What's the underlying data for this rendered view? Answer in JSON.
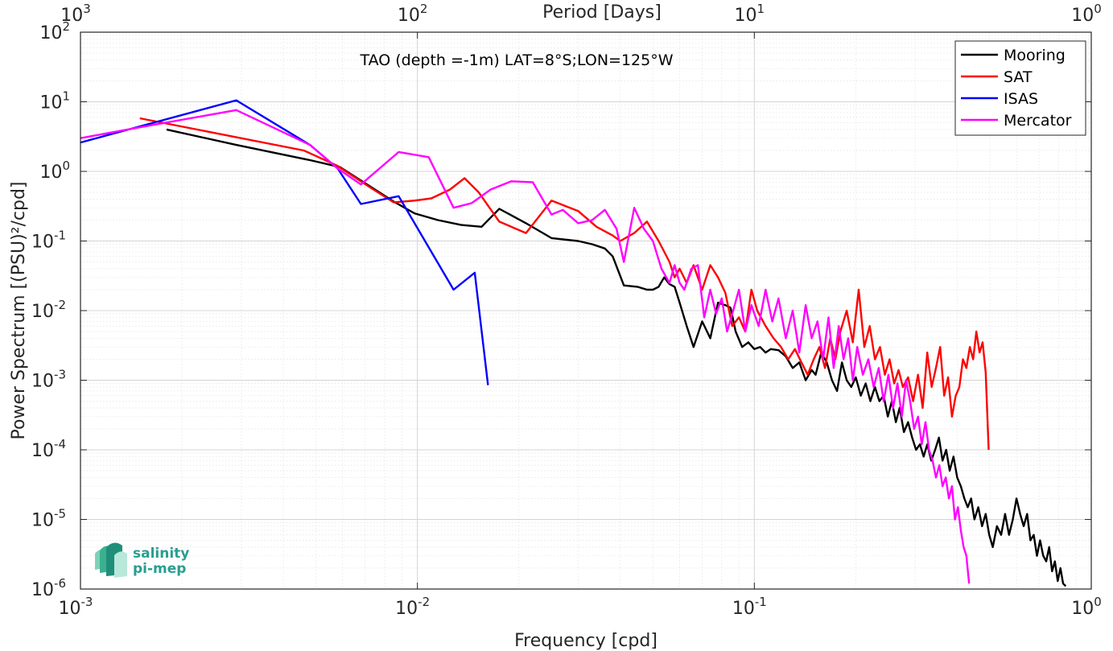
{
  "chart_data": {
    "type": "line",
    "title": "",
    "annotation": "TAO (depth =-1m) LAT=8°S;LON=125°W",
    "xlabel": "Frequency [cpd]",
    "ylabel": "Power Spectrum [(PSU)²/cpd]",
    "top_xlabel": "Period [Days]",
    "xscale": "log",
    "yscale": "log",
    "xlim": [
      0.001,
      1
    ],
    "ylim": [
      1e-06,
      100
    ],
    "grid": true,
    "legend_position": "top-right",
    "x_ticks": [
      {
        "base": "10",
        "exp": "-3",
        "value": 0.001
      },
      {
        "base": "10",
        "exp": "-2",
        "value": 0.01
      },
      {
        "base": "10",
        "exp": "-1",
        "value": 0.1
      },
      {
        "base": "10",
        "exp": "0",
        "value": 1
      }
    ],
    "y_ticks": [
      {
        "base": "10",
        "exp": "2",
        "value": 100
      },
      {
        "base": "10",
        "exp": "1",
        "value": 10
      },
      {
        "base": "10",
        "exp": "0",
        "value": 1
      },
      {
        "base": "10",
        "exp": "-1",
        "value": 0.1
      },
      {
        "base": "10",
        "exp": "-2",
        "value": 0.01
      },
      {
        "base": "10",
        "exp": "-3",
        "value": 0.001
      },
      {
        "base": "10",
        "exp": "-4",
        "value": 0.0001
      },
      {
        "base": "10",
        "exp": "-5",
        "value": 1e-05
      },
      {
        "base": "10",
        "exp": "-6",
        "value": 1e-06
      }
    ],
    "top_ticks": [
      {
        "base": "10",
        "exp": "3",
        "value": 0.001
      },
      {
        "base": "10",
        "exp": "2",
        "value": 0.01
      },
      {
        "base": "10",
        "exp": "1",
        "value": 0.1
      },
      {
        "base": "10",
        "exp": "0",
        "value": 1
      }
    ],
    "series": [
      {
        "name": "Mooring",
        "color": "#000000",
        "x": [
          0.0018,
          0.0029,
          0.0048,
          0.0059,
          0.0072,
          0.0085,
          0.0098,
          0.0115,
          0.0135,
          0.0155,
          0.0175,
          0.021,
          0.025,
          0.03,
          0.033,
          0.036,
          0.038,
          0.041,
          0.045,
          0.048,
          0.05,
          0.052,
          0.054,
          0.056,
          0.058,
          0.06,
          0.063,
          0.066,
          0.07,
          0.074,
          0.078,
          0.082,
          0.085,
          0.088,
          0.092,
          0.096,
          0.1,
          0.104,
          0.108,
          0.112,
          0.118,
          0.124,
          0.13,
          0.136,
          0.142,
          0.148,
          0.152,
          0.158,
          0.164,
          0.17,
          0.176,
          0.182,
          0.188,
          0.194,
          0.2,
          0.207,
          0.214,
          0.221,
          0.228,
          0.235,
          0.242,
          0.249,
          0.256,
          0.263,
          0.27,
          0.278,
          0.286,
          0.294,
          0.302,
          0.31,
          0.318,
          0.326,
          0.335,
          0.344,
          0.353,
          0.362,
          0.371,
          0.38,
          0.39,
          0.4,
          0.41,
          0.42,
          0.43,
          0.44,
          0.45,
          0.462,
          0.474,
          0.486,
          0.498,
          0.51,
          0.525,
          0.54,
          0.555,
          0.57,
          0.585,
          0.6,
          0.615,
          0.63,
          0.645,
          0.66,
          0.675,
          0.69,
          0.705,
          0.72,
          0.735,
          0.75,
          0.765,
          0.78,
          0.795,
          0.81,
          0.825,
          0.84
        ],
        "y": [
          4.0,
          2.4,
          1.45,
          1.15,
          0.62,
          0.37,
          0.25,
          0.2,
          0.17,
          0.16,
          0.29,
          0.18,
          0.11,
          0.1,
          0.09,
          0.078,
          0.06,
          0.023,
          0.022,
          0.02,
          0.02,
          0.022,
          0.03,
          0.024,
          0.022,
          0.013,
          0.006,
          0.003,
          0.007,
          0.004,
          0.013,
          0.012,
          0.011,
          0.005,
          0.003,
          0.0035,
          0.0028,
          0.003,
          0.0025,
          0.0028,
          0.0027,
          0.0022,
          0.0015,
          0.0018,
          0.001,
          0.0014,
          0.0012,
          0.0025,
          0.0018,
          0.001,
          0.0007,
          0.0018,
          0.001,
          0.0008,
          0.0011,
          0.0006,
          0.0009,
          0.0005,
          0.0008,
          0.0005,
          0.0006,
          0.0003,
          0.0005,
          0.00025,
          0.0004,
          0.00018,
          0.00025,
          0.00015,
          0.0001,
          0.00012,
          8e-05,
          0.00012,
          7e-05,
          0.0001,
          0.00015,
          7e-05,
          0.0001,
          5e-05,
          8e-05,
          4e-05,
          3e-05,
          2e-05,
          1.5e-05,
          2e-05,
          1e-05,
          1.5e-05,
          8e-06,
          1.2e-05,
          6e-06,
          4e-06,
          8e-06,
          6e-06,
          1.2e-05,
          6e-06,
          1e-05,
          2e-05,
          1.2e-05,
          8e-06,
          1.2e-05,
          5e-06,
          6e-06,
          3e-06,
          5e-06,
          3e-06,
          2.5e-06,
          4e-06,
          1.8e-06,
          2.5e-06,
          1.3e-06,
          2e-06,
          1.2e-06,
          1.1e-06
        ]
      },
      {
        "name": "SAT",
        "color": "#ff0000",
        "x": [
          0.0015,
          0.0046,
          0.0058,
          0.0072,
          0.0085,
          0.0098,
          0.011,
          0.0125,
          0.0138,
          0.0152,
          0.0175,
          0.021,
          0.025,
          0.03,
          0.034,
          0.038,
          0.04,
          0.044,
          0.048,
          0.052,
          0.056,
          0.058,
          0.06,
          0.063,
          0.066,
          0.07,
          0.074,
          0.078,
          0.082,
          0.086,
          0.09,
          0.094,
          0.098,
          0.102,
          0.108,
          0.114,
          0.12,
          0.126,
          0.132,
          0.138,
          0.144,
          0.15,
          0.156,
          0.162,
          0.168,
          0.174,
          0.18,
          0.188,
          0.196,
          0.204,
          0.212,
          0.22,
          0.228,
          0.236,
          0.244,
          0.252,
          0.26,
          0.268,
          0.276,
          0.286,
          0.296,
          0.306,
          0.316,
          0.326,
          0.336,
          0.346,
          0.356,
          0.366,
          0.376,
          0.386,
          0.396,
          0.406,
          0.416,
          0.426,
          0.436,
          0.446,
          0.456,
          0.466,
          0.476,
          0.486,
          0.496
        ],
        "y": [
          5.8,
          2.0,
          1.2,
          0.6,
          0.36,
          0.38,
          0.41,
          0.55,
          0.8,
          0.5,
          0.19,
          0.13,
          0.38,
          0.27,
          0.16,
          0.12,
          0.1,
          0.13,
          0.19,
          0.1,
          0.05,
          0.03,
          0.04,
          0.025,
          0.045,
          0.02,
          0.045,
          0.03,
          0.018,
          0.006,
          0.008,
          0.005,
          0.02,
          0.01,
          0.006,
          0.004,
          0.003,
          0.002,
          0.0028,
          0.0018,
          0.0012,
          0.002,
          0.003,
          0.0015,
          0.004,
          0.002,
          0.005,
          0.01,
          0.0035,
          0.02,
          0.003,
          0.006,
          0.002,
          0.003,
          0.0012,
          0.002,
          0.0009,
          0.0014,
          0.0008,
          0.0011,
          0.0005,
          0.0012,
          0.0004,
          0.0025,
          0.0008,
          0.0015,
          0.003,
          0.0006,
          0.0011,
          0.0003,
          0.0006,
          0.0008,
          0.002,
          0.0015,
          0.003,
          0.002,
          0.005,
          0.0025,
          0.0035,
          0.0013,
          0.0001
        ]
      },
      {
        "name": "ISAS",
        "color": "#0000ff",
        "x": [
          0.001,
          0.0029,
          0.0048,
          0.0058,
          0.0068,
          0.0088,
          0.0128,
          0.0148,
          0.0162
        ],
        "y": [
          2.6,
          10.5,
          2.4,
          1.1,
          0.34,
          0.44,
          0.02,
          0.035,
          0.00085
        ]
      },
      {
        "name": "Mercator",
        "color": "#ff00ff",
        "x": [
          0.001,
          0.0015,
          0.0029,
          0.0048,
          0.0058,
          0.0068,
          0.0088,
          0.0108,
          0.0128,
          0.0145,
          0.0165,
          0.019,
          0.022,
          0.025,
          0.027,
          0.03,
          0.033,
          0.036,
          0.039,
          0.041,
          0.044,
          0.047,
          0.05,
          0.053,
          0.056,
          0.058,
          0.06,
          0.062,
          0.065,
          0.068,
          0.071,
          0.074,
          0.077,
          0.08,
          0.083,
          0.086,
          0.09,
          0.094,
          0.098,
          0.103,
          0.108,
          0.113,
          0.118,
          0.124,
          0.13,
          0.136,
          0.142,
          0.148,
          0.154,
          0.16,
          0.166,
          0.172,
          0.178,
          0.184,
          0.19,
          0.196,
          0.202,
          0.21,
          0.218,
          0.226,
          0.234,
          0.242,
          0.25,
          0.258,
          0.266,
          0.274,
          0.282,
          0.29,
          0.298,
          0.306,
          0.314,
          0.322,
          0.33,
          0.338,
          0.346,
          0.354,
          0.362,
          0.37,
          0.378,
          0.386,
          0.394,
          0.402,
          0.41,
          0.418,
          0.426,
          0.434
        ],
        "y": [
          3.0,
          4.3,
          7.6,
          2.4,
          1.1,
          0.65,
          1.9,
          1.6,
          0.3,
          0.35,
          0.55,
          0.72,
          0.7,
          0.24,
          0.28,
          0.18,
          0.2,
          0.28,
          0.15,
          0.05,
          0.3,
          0.15,
          0.1,
          0.04,
          0.025,
          0.045,
          0.025,
          0.02,
          0.04,
          0.045,
          0.008,
          0.02,
          0.009,
          0.015,
          0.005,
          0.009,
          0.02,
          0.005,
          0.012,
          0.006,
          0.02,
          0.007,
          0.015,
          0.004,
          0.01,
          0.0025,
          0.012,
          0.004,
          0.007,
          0.002,
          0.008,
          0.0015,
          0.006,
          0.002,
          0.004,
          0.001,
          0.003,
          0.0012,
          0.002,
          0.0008,
          0.0015,
          0.0005,
          0.0012,
          0.0004,
          0.0009,
          0.0003,
          0.001,
          0.0005,
          0.0002,
          0.0003,
          0.00012,
          0.00025,
          0.0001,
          7e-05,
          4e-05,
          6e-05,
          3e-05,
          4e-05,
          2e-05,
          3e-05,
          1e-05,
          1.5e-05,
          7e-06,
          4e-06,
          3e-06,
          1.2e-06
        ]
      }
    ]
  },
  "logo": {
    "line1": "salinity",
    "line2": "pi-mep"
  }
}
